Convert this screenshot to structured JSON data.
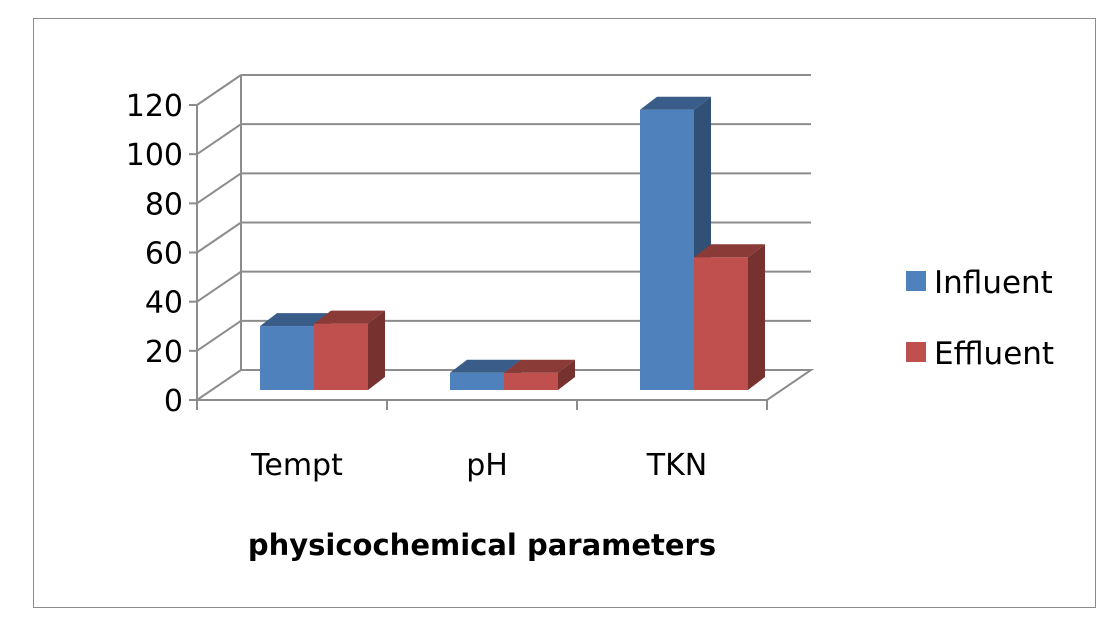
{
  "chart_data": {
    "type": "bar",
    "style": "3d-clustered-column",
    "title": "",
    "xlabel": "physicochemical parameters",
    "ylabel": "",
    "categories": [
      "Tempt",
      "pH",
      "TKN"
    ],
    "series": [
      {
        "name": "Influent",
        "values": [
          26,
          7,
          114
        ],
        "color": "#4f81bd"
      },
      {
        "name": "Effluent",
        "values": [
          27,
          7,
          54
        ],
        "color": "#c0504d"
      }
    ],
    "ylim": [
      0,
      120
    ],
    "yticks": [
      0,
      20,
      40,
      60,
      80,
      100,
      120
    ],
    "grid": true,
    "legend": "right"
  }
}
